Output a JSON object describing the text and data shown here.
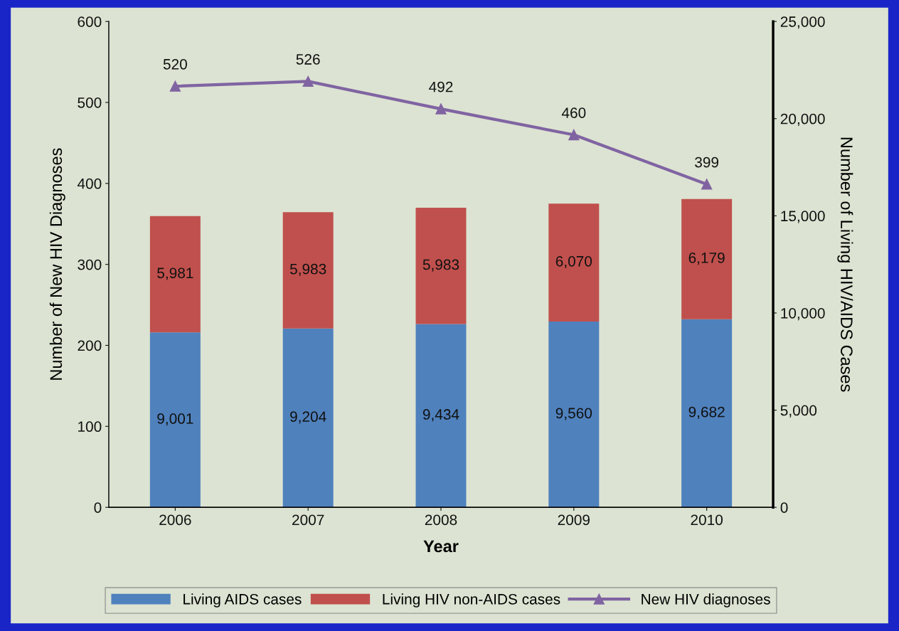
{
  "chart_data": {
    "type": "bar",
    "xlabel": "Year",
    "ylabel": "Number of New HIV Diagnoses",
    "y2label": "Number of Living HIV/AIDS Cases",
    "categories": [
      "2006",
      "2007",
      "2008",
      "2009",
      "2010"
    ],
    "stacked": true,
    "series": [
      {
        "name": "Living AIDS cases",
        "axis": "y2",
        "color": "#4f81bd",
        "values": [
          9001,
          9204,
          9434,
          9560,
          9682
        ],
        "value_labels": [
          "9,001",
          "9,204",
          "9,434",
          "9,560",
          "9,682"
        ]
      },
      {
        "name": "Living HIV non-AIDS cases",
        "axis": "y2",
        "color": "#c0504d",
        "values": [
          5981,
          5983,
          5983,
          6070,
          6179
        ],
        "value_labels": [
          "5,981",
          "5,983",
          "5,983",
          "6,070",
          "6,179"
        ]
      },
      {
        "name": "New HIV diagnoses",
        "type": "line",
        "axis": "y",
        "color": "#8064a2",
        "marker": "triangle",
        "values": [
          520,
          526,
          492,
          460,
          399
        ],
        "value_labels": [
          "520",
          "526",
          "492",
          "460",
          "399"
        ]
      }
    ],
    "ylim": [
      0,
      600
    ],
    "yticks": [
      0,
      100,
      200,
      300,
      400,
      500,
      600
    ],
    "y2lim": [
      0,
      25000
    ],
    "y2ticks": [
      0,
      {
        "value": 5000,
        "label": "5,000"
      },
      {
        "value": 10000,
        "label": "10,000"
      },
      {
        "value": 15000,
        "label": "15,000"
      },
      {
        "value": 20000,
        "label": "20,000"
      },
      {
        "value": 25000,
        "label": "25,000"
      }
    ],
    "grid": false,
    "legend": "bottom"
  }
}
